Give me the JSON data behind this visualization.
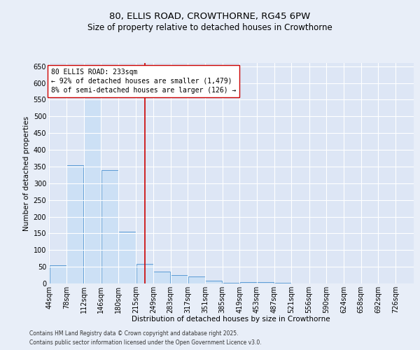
{
  "title_line1": "80, ELLIS ROAD, CROWTHORNE, RG45 6PW",
  "title_line2": "Size of property relative to detached houses in Crowthorne",
  "xlabel": "Distribution of detached houses by size in Crowthorne",
  "ylabel": "Number of detached properties",
  "bar_color": "#cce0f5",
  "bar_edge_color": "#5b9bd5",
  "background_color": "#e8eef8",
  "plot_bg_color": "#dde6f5",
  "grid_color": "#ffffff",
  "annotation_line_color": "#cc0000",
  "annotation_box_color": "#cc0000",
  "annotation_text_line1": "80 ELLIS ROAD: 233sqm",
  "annotation_text_line2": "← 92% of detached houses are smaller (1,479)",
  "annotation_text_line3": "8% of semi-detached houses are larger (126) →",
  "ref_line_x": 233,
  "categories": [
    "44sqm",
    "78sqm",
    "112sqm",
    "146sqm",
    "180sqm",
    "215sqm",
    "249sqm",
    "283sqm",
    "317sqm",
    "351sqm",
    "385sqm",
    "419sqm",
    "453sqm",
    "487sqm",
    "521sqm",
    "556sqm",
    "590sqm",
    "624sqm",
    "658sqm",
    "692sqm",
    "726sqm"
  ],
  "bin_edges": [
    44,
    78,
    112,
    146,
    180,
    215,
    249,
    283,
    317,
    351,
    385,
    419,
    453,
    487,
    521,
    556,
    590,
    624,
    658,
    692,
    726,
    760
  ],
  "values": [
    55,
    355,
    610,
    340,
    155,
    58,
    35,
    25,
    22,
    8,
    3,
    5,
    5,
    2,
    1,
    0,
    1,
    0,
    0,
    0,
    1
  ],
  "ylim": [
    0,
    660
  ],
  "yticks": [
    0,
    50,
    100,
    150,
    200,
    250,
    300,
    350,
    400,
    450,
    500,
    550,
    600,
    650
  ],
  "title_fontsize": 9.5,
  "subtitle_fontsize": 8.5,
  "label_fontsize": 7.5,
  "tick_fontsize": 7,
  "annot_fontsize": 7,
  "footer_fontsize": 5.5,
  "footer_text1": "Contains HM Land Registry data © Crown copyright and database right 2025.",
  "footer_text2": "Contains public sector information licensed under the Open Government Licence v3.0."
}
